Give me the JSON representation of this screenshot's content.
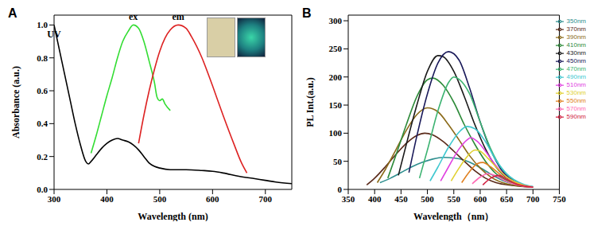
{
  "chart_data": [
    {
      "type": "line",
      "title": "A",
      "x_label": "Wavelength (nm)",
      "y_label": "Absorbance (a.u.)",
      "xlim": [
        300,
        750
      ],
      "xticks": [
        300,
        400,
        500,
        600,
        700
      ],
      "ylim": [
        0,
        1.06
      ],
      "yticks": [
        {
          "value": 0,
          "label": "0.0"
        },
        0.2,
        0.4,
        0.6,
        0.8,
        {
          "value": 1,
          "label": "1.0"
        }
      ],
      "series": [
        {
          "name": "UV",
          "color": "#000000",
          "x": [
            300,
            310,
            320,
            330,
            340,
            350,
            360,
            365,
            370,
            380,
            390,
            400,
            410,
            420,
            430,
            440,
            450,
            460,
            470,
            480,
            490,
            500,
            520,
            550,
            580,
            600,
            620,
            650,
            680,
            700,
            720,
            750
          ],
          "values": [
            1.0,
            0.85,
            0.7,
            0.55,
            0.4,
            0.27,
            0.17,
            0.155,
            0.17,
            0.21,
            0.25,
            0.28,
            0.3,
            0.31,
            0.3,
            0.29,
            0.27,
            0.24,
            0.2,
            0.16,
            0.14,
            0.13,
            0.12,
            0.12,
            0.115,
            0.11,
            0.1,
            0.08,
            0.065,
            0.055,
            0.045,
            0.035
          ]
        },
        {
          "name": "ex",
          "color": "#33dd33",
          "x": [
            370,
            380,
            390,
            400,
            410,
            420,
            430,
            440,
            450,
            460,
            470,
            480,
            490,
            495,
            500,
            505,
            510,
            520
          ],
          "values": [
            0.22,
            0.33,
            0.45,
            0.57,
            0.68,
            0.8,
            0.9,
            0.96,
            1.0,
            0.98,
            0.9,
            0.78,
            0.65,
            0.56,
            0.54,
            0.55,
            0.52,
            0.48
          ]
        },
        {
          "name": "em",
          "color": "#dd2222",
          "x": [
            460,
            470,
            480,
            490,
            500,
            510,
            520,
            535,
            550,
            560,
            580,
            600,
            620,
            640,
            655,
            665
          ],
          "values": [
            0.28,
            0.45,
            0.6,
            0.73,
            0.84,
            0.92,
            0.97,
            1.0,
            0.98,
            0.93,
            0.8,
            0.63,
            0.45,
            0.28,
            0.16,
            0.1
          ]
        }
      ]
    },
    {
      "type": "line",
      "title": "B",
      "x_label": "Wavelength（nm）",
      "y_label": "PL Int.(a.u.)",
      "xlim": [
        350,
        750
      ],
      "xticks": [
        350,
        400,
        450,
        500,
        550,
        600,
        650,
        700,
        750
      ],
      "ylim": [
        0,
        310
      ],
      "yticks": [
        0,
        50,
        100,
        150,
        200,
        250,
        300
      ],
      "legend": "upper right",
      "series": [
        {
          "name": "350nm",
          "color": "#2f8f8f",
          "x": [
            410,
            430,
            450,
            470,
            490,
            510,
            530,
            550,
            570,
            590,
            610,
            630,
            650,
            670,
            700
          ],
          "values": [
            12,
            20,
            30,
            40,
            48,
            54,
            57,
            56,
            52,
            44,
            33,
            22,
            13,
            8,
            5
          ]
        },
        {
          "name": "370nm",
          "color": "#5a2a1a",
          "x": [
            385,
            400,
            420,
            440,
            460,
            480,
            495,
            510,
            530,
            550,
            570,
            590,
            610,
            630,
            660,
            700
          ],
          "values": [
            8,
            20,
            40,
            62,
            82,
            96,
            100,
            97,
            85,
            68,
            50,
            33,
            20,
            12,
            7,
            4
          ]
        },
        {
          "name": "390nm",
          "color": "#8b6b1a",
          "x": [
            405,
            420,
            440,
            460,
            480,
            500,
            520,
            540,
            560,
            580,
            600,
            620,
            650,
            700
          ],
          "values": [
            12,
            35,
            70,
            105,
            133,
            145,
            138,
            115,
            88,
            60,
            38,
            22,
            10,
            4
          ]
        },
        {
          "name": "410nm",
          "color": "#2e8b3a",
          "x": [
            425,
            440,
            460,
            480,
            500,
            510,
            530,
            550,
            570,
            590,
            610,
            630,
            660,
            700
          ],
          "values": [
            20,
            60,
            115,
            165,
            195,
            198,
            185,
            155,
            115,
            80,
            50,
            28,
            12,
            4
          ]
        },
        {
          "name": "430nm",
          "color": "#1a1a1a",
          "x": [
            445,
            460,
            480,
            500,
            520,
            530,
            550,
            570,
            590,
            610,
            630,
            660,
            700
          ],
          "values": [
            25,
            80,
            150,
            210,
            238,
            236,
            210,
            165,
            115,
            72,
            40,
            15,
            4
          ]
        },
        {
          "name": "450nm",
          "color": "#1a1a5a",
          "x": [
            465,
            480,
            500,
            520,
            540,
            560,
            580,
            600,
            620,
            640,
            670,
            700
          ],
          "values": [
            30,
            95,
            170,
            225,
            245,
            230,
            180,
            120,
            70,
            35,
            12,
            4
          ]
        },
        {
          "name": "470nm",
          "color": "#3cb371",
          "x": [
            485,
            500,
            520,
            540,
            550,
            560,
            580,
            600,
            620,
            640,
            670,
            700
          ],
          "values": [
            20,
            70,
            140,
            190,
            200,
            196,
            170,
            120,
            72,
            38,
            13,
            4
          ]
        },
        {
          "name": "490nm",
          "color": "#40c8d0",
          "x": [
            505,
            520,
            540,
            560,
            575,
            590,
            610,
            630,
            650,
            680,
            700
          ],
          "values": [
            15,
            40,
            75,
            102,
            112,
            108,
            85,
            52,
            28,
            10,
            5
          ]
        },
        {
          "name": "510nm",
          "color": "#e040e0",
          "x": [
            525,
            540,
            560,
            575,
            582,
            595,
            610,
            630,
            650,
            680,
            700
          ],
          "values": [
            15,
            40,
            72,
            88,
            92,
            85,
            68,
            42,
            22,
            8,
            4
          ]
        },
        {
          "name": "530nm",
          "color": "#e0d030",
          "x": [
            545,
            560,
            575,
            590,
            600,
            615,
            630,
            650,
            680,
            700
          ],
          "values": [
            15,
            38,
            58,
            70,
            68,
            55,
            40,
            22,
            8,
            4
          ]
        },
        {
          "name": "550nm",
          "color": "#e08020",
          "x": [
            565,
            580,
            595,
            605,
            620,
            640,
            660,
            690,
            700
          ],
          "values": [
            12,
            32,
            46,
            48,
            40,
            25,
            13,
            5,
            4
          ]
        },
        {
          "name": "570nm",
          "color": "#ff69b4",
          "x": [
            585,
            600,
            615,
            630,
            650,
            680,
            700
          ],
          "values": [
            10,
            22,
            28,
            24,
            14,
            6,
            4
          ]
        },
        {
          "name": "590nm",
          "color": "#d02040",
          "x": [
            605,
            620,
            635,
            650,
            670,
            700
          ],
          "values": [
            8,
            20,
            25,
            18,
            9,
            4
          ]
        }
      ]
    }
  ]
}
